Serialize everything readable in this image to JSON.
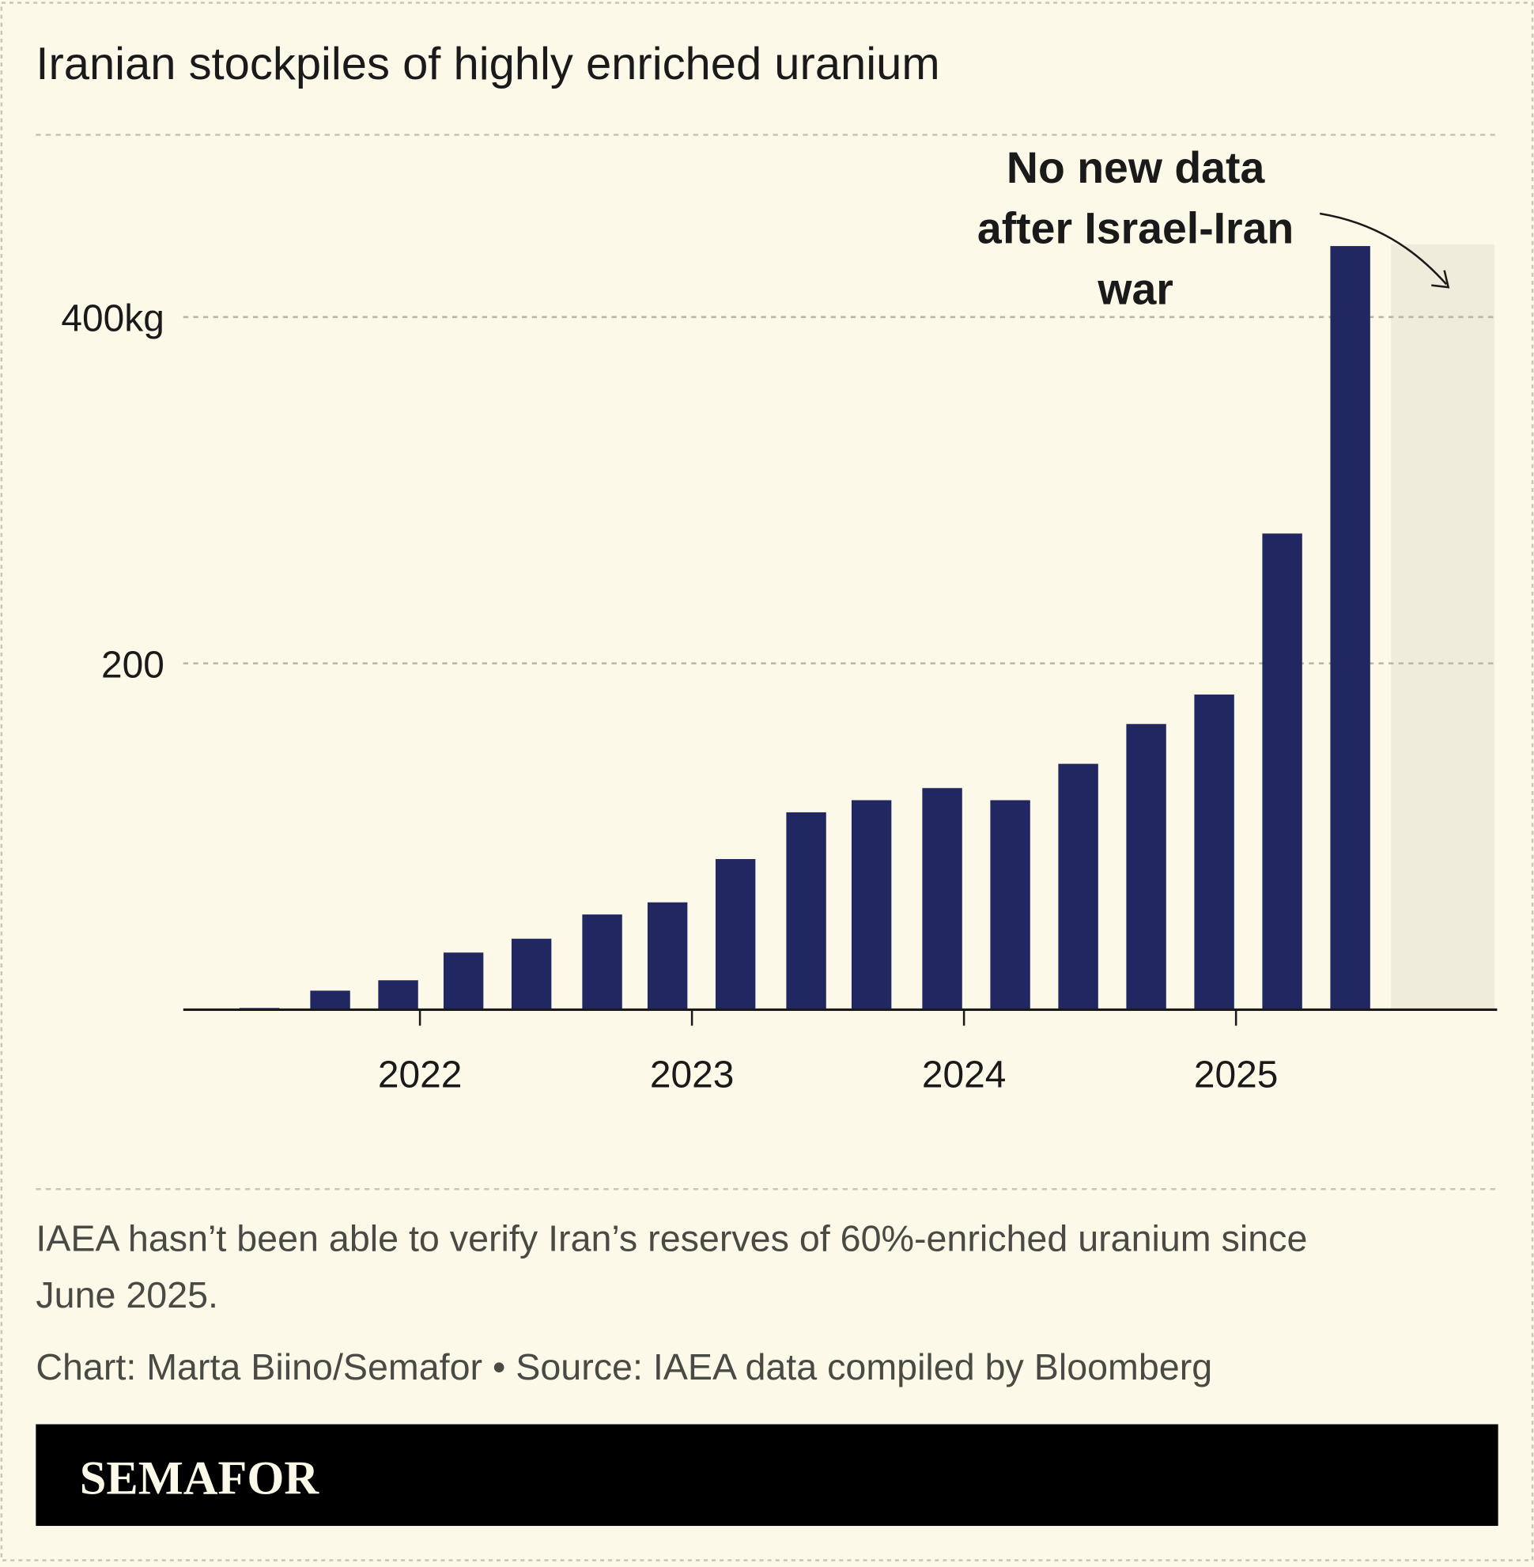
{
  "chart_data": {
    "type": "bar",
    "title": "Iranian stockpiles of highly enriched uranium",
    "x": [
      2021.41,
      2021.67,
      2021.92,
      2022.16,
      2022.41,
      2022.67,
      2022.91,
      2023.16,
      2023.42,
      2023.66,
      2023.92,
      2024.17,
      2024.42,
      2024.67,
      2024.92,
      2025.17,
      2025.42
    ],
    "values": [
      1,
      11,
      17,
      33,
      41,
      55,
      62,
      87,
      114,
      121,
      128,
      121,
      142,
      165,
      182,
      275,
      441
    ],
    "color": "#212761",
    "xlim": [
      2021.13,
      2025.96
    ],
    "xticks": [
      2022,
      2023,
      2024,
      2025
    ],
    "ylim": [
      0,
      450
    ],
    "yticks": [
      {
        "value": 200,
        "label": "200"
      },
      {
        "value": 400,
        "label": "400kg"
      }
    ],
    "grid": true,
    "shaded_range": [
      2025.57,
      2025.95
    ],
    "annotation": [
      "No new data",
      "after Israel-Iran",
      "war"
    ],
    "note": [
      "IAEA hasn’t been able to verify Iran’s reserves of 60%-enriched uranium since",
      "June 2025."
    ],
    "credit": "Chart: Marta Biino/Semafor • Source: IAEA data compiled by Bloomberg",
    "logo": "SEMAFOR"
  }
}
